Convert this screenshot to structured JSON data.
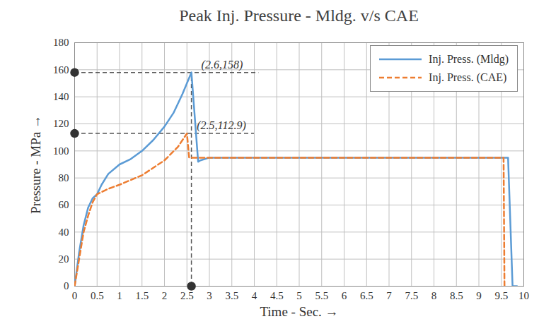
{
  "chart_data": {
    "type": "line",
    "title": "Peak Inj. Pressure - Mldg. v/s CAE",
    "x_label": "Time - Sec.",
    "y_label": "Pressure - MPa",
    "xlim": [
      0,
      10
    ],
    "xticks": [
      0,
      0.5,
      1,
      1.5,
      2,
      2.5,
      3,
      3.5,
      4,
      4.5,
      5,
      5.5,
      6,
      6.5,
      7,
      7.5,
      8,
      8.5,
      9,
      9.5,
      10
    ],
    "ylim": [
      0,
      180
    ],
    "yticks": [
      0,
      20,
      40,
      60,
      80,
      100,
      120,
      140,
      160,
      180
    ],
    "grid": true,
    "legend": "upper right",
    "series": [
      {
        "name": "Inj. Press. (Mldg)",
        "color": "#5b9bd5",
        "line_style": "solid",
        "x": [
          0,
          0.1,
          0.2,
          0.3,
          0.4,
          0.5,
          0.6,
          0.75,
          1,
          1.25,
          1.5,
          1.75,
          2,
          2.2,
          2.4,
          2.5,
          2.6,
          2.75,
          2.8,
          3,
          9.5,
          9.65,
          9.75,
          9.85
        ],
        "values": [
          0,
          25,
          45,
          58,
          65,
          68,
          75,
          83,
          90,
          94,
          100,
          108,
          118,
          128,
          142,
          150,
          158,
          92,
          93,
          95,
          95,
          95,
          0,
          0
        ]
      },
      {
        "name": "Inj. Press. (CAE)",
        "color": "#ed7d31",
        "line_style": "dashed",
        "x": [
          0,
          0.1,
          0.2,
          0.3,
          0.4,
          0.5,
          0.75,
          1,
          1.5,
          2,
          2.3,
          2.5,
          2.55,
          3,
          9.5,
          9.55,
          9.57
        ],
        "values": [
          0,
          20,
          40,
          52,
          62,
          68,
          72,
          75,
          82,
          93,
          103,
          112.9,
          95,
          95,
          95,
          95,
          0
        ]
      }
    ],
    "annotations": [
      {
        "text": "(2.6,158)",
        "x": 2.6,
        "y": 158
      },
      {
        "text": "(2.5,112.9)",
        "x": 2.5,
        "y": 112.9
      }
    ]
  }
}
